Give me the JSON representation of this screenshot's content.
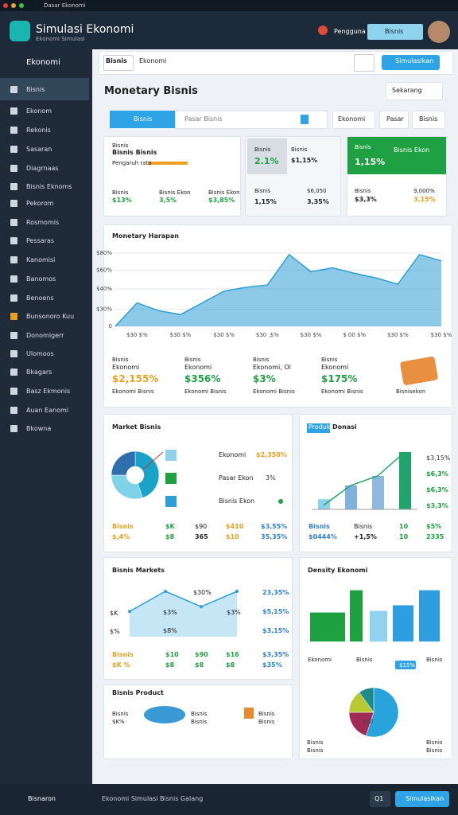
{
  "window": {
    "title": "Dasar Ekonomi"
  },
  "header": {
    "title": "Simulasi Ekonomi",
    "subtitle": "Ekonomi Simulasi",
    "user": "Pengguna",
    "button": "Bisnis"
  },
  "sidebar": {
    "title": "Ekonomi",
    "items": [
      "Bisnis",
      "Ekonom",
      "Rekonis",
      "Sasaran",
      "Diagrnaas",
      "Bisnis Eknoms",
      "Pekorom",
      "Rosmomis",
      "Pessaras",
      "Kanomisi",
      "Banomos",
      "Benoens",
      "Bunsonoro Kuu",
      "Donomigerr",
      "Ulomoos",
      "Bkagars",
      "Basz Ekmonis",
      "Auan Eanomi",
      "Bkowna"
    ],
    "footer": "Bisnaron"
  },
  "toolbar": {
    "tabs": [
      "Bisnis",
      "Ekonomi"
    ],
    "button": "Simulasikan"
  },
  "page": {
    "title": "Monetary Bisnis",
    "select": "Sekarang"
  },
  "filters": {
    "active": "Bisnis",
    "search": "Pasar Bisnis",
    "buttons": [
      "Ekonomi",
      "Pasar",
      "Bisnis"
    ]
  },
  "kpi": [
    {
      "title": "Bisnis",
      "heading": "Bisnis Bisnis",
      "note": "Pengaruh rata",
      "rows": [
        [
          "Bisnis",
          "$13%"
        ],
        [
          "Bisnis Ekon",
          "3,5%"
        ],
        [
          "Bisnis Ekon",
          "$3,85%"
        ]
      ]
    },
    {
      "rows": [
        [
          "Bisnis",
          "2.1%"
        ],
        [
          "Bisnis",
          "$1,15%"
        ],
        [
          "Bisnis",
          "1,15%"
        ],
        [
          "$6,050",
          "3,35%"
        ]
      ]
    },
    {
      "title": "Bisnis",
      "heading": "Bisnis Ekon",
      "main": "1,15%",
      "rows": [
        [
          "Bisnis",
          "$3,3%"
        ],
        [
          "9,000%",
          "3,15%"
        ]
      ]
    }
  ],
  "charts": {
    "main": {
      "type": "area",
      "title": "Monetary Harapan",
      "categories": [
        null,
        "$30 $%",
        null,
        "$30 $%",
        null,
        "$30 $%",
        null,
        "$30 ,$%",
        null,
        "$30 $%",
        null,
        "$ 00 $%",
        null,
        "$30 $%",
        null,
        "$30 $%"
      ],
      "values": [
        0,
        30,
        20,
        15,
        30,
        45,
        50,
        53,
        92,
        70,
        75,
        68,
        62,
        54,
        92,
        84
      ],
      "color": "#2e9fd6",
      "ylim": [
        0,
        100
      ],
      "yticks": [
        0,
        {
          "value": 22,
          "label": "$30%"
        },
        {
          "value": 48,
          "label": "$40%"
        },
        {
          "value": 72,
          "label": "$60%"
        },
        {
          "value": 94,
          "label": "$80%"
        }
      ]
    },
    "market": {
      "type": "donut",
      "values": [
        45,
        30,
        25
      ],
      "colors": [
        "#1aa3c9",
        "#7ed3e8",
        "#2f6fae"
      ]
    },
    "produk": {
      "type": "bar",
      "values": [
        17,
        40,
        56,
        96
      ],
      "colors": [
        "#8fd0ea",
        "#7fb2dc",
        "#8fb8e0",
        "#1fa56b"
      ],
      "line": [
        7,
        40,
        56,
        96
      ],
      "line_color": "#1fa56b",
      "ylim": [
        0,
        100
      ]
    },
    "markets": {
      "type": "area",
      "values": [
        53,
        95,
        63,
        95
      ],
      "color": "#2e9fd6",
      "ylim": [
        0,
        100
      ]
    },
    "density": {
      "type": "bar",
      "values": [
        52,
        92,
        55,
        65,
        92
      ],
      "colors": [
        "#1fa040",
        "#1fa040",
        "#8fd3f0",
        "#2f9ee0",
        "#2f9ee0"
      ],
      "ylim": [
        0,
        100
      ]
    },
    "density_pie": {
      "type": "pie",
      "values": [
        55,
        20,
        15,
        10
      ],
      "colors": [
        "#29a3dc",
        "#a02a55",
        "#b8c832",
        "#1f8a8a"
      ]
    }
  },
  "stats": [
    {
      "label": "Bisnis",
      "sub": "Ekonomi",
      "value": "$2,155%",
      "foot": "Ekonomi Bisnis"
    },
    {
      "label": "Bisnis",
      "sub": "Ekonomi",
      "value": "$356%",
      "foot": "Ekonomi Bisnis"
    },
    {
      "label": "Bisnis",
      "sub": "Ekonomi, Ol",
      "value": "$3%",
      "foot": "Ekonomi Bisnis"
    },
    {
      "label": "Bisnis",
      "sub": "Ekonomi",
      "value": "$175%",
      "foot": "Ekonomi Bisnis"
    },
    {
      "foot": "Bisnisekon"
    }
  ],
  "market_card": {
    "title": "Market Bisnis",
    "rows": [
      {
        "label": "Ekonomi",
        "value": "$2,350%"
      },
      {
        "label": "Pasar Ekon",
        "value": "3%"
      },
      {
        "label": "Bisnis Ekon"
      }
    ],
    "table": [
      [
        "Bisnis",
        "$K",
        "$90",
        "$410",
        "$3,55%"
      ],
      [
        "$,4%",
        "$8",
        "365",
        "$10",
        "35,35%"
      ]
    ]
  },
  "produk_card": {
    "badge": "Produk",
    "title": "Donasi",
    "side": [
      "$3,15%",
      "$6,3%",
      "$6,3%",
      "$3,3%"
    ],
    "table": [
      [
        "Bisnis",
        "Bisnis",
        "10",
        "$5%"
      ],
      [
        "$0444%",
        "+1,5%",
        "10",
        "2335"
      ]
    ]
  },
  "markets_card": {
    "title": "Bisnis Markets",
    "left": [
      "$K",
      "$%"
    ],
    "labels": [
      "$30%",
      "$3%",
      "$3%",
      "$8%"
    ],
    "side": [
      "23,35%",
      "$5,15%",
      "$3,15%"
    ],
    "table": [
      [
        "Bisnis",
        "$10",
        "$90",
        "$16",
        "$3,35%"
      ],
      [
        "$K %",
        "$8",
        "$8",
        "$8",
        "$35%"
      ]
    ]
  },
  "density_card": {
    "title": "Density Ekonomi",
    "labels": [
      "Ekonomi",
      "Bisnis",
      "Bisnis"
    ],
    "badge": "$15%",
    "pie_label": "$30",
    "bottom": [
      "Bisnis",
      "Bisnis",
      "Bisnis",
      "Bisnis"
    ]
  },
  "product_card": {
    "title": "Bisnis Product",
    "left": [
      "Bisnis",
      "$K%"
    ],
    "right": [
      "Bisnis",
      "Bisnis"
    ],
    "far": [
      "Bisnis",
      "Bisnis"
    ]
  },
  "footer": {
    "text": "Ekonomi Simulasi Bisnis Galang",
    "button1": "Q1",
    "button2": "Simulasikan"
  }
}
